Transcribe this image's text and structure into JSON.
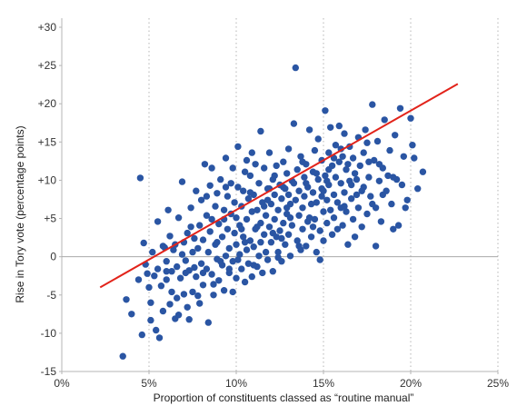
{
  "chart_data": {
    "type": "scatter",
    "xlabel": "Proportion of constituents classed as “routine manual”",
    "ylabel": "Rise in Tory vote (percentage points)",
    "xlim": [
      0,
      25
    ],
    "ylim": [
      -15,
      30
    ],
    "x_ticks": [
      0,
      5,
      10,
      15,
      20,
      25
    ],
    "x_tick_labels": [
      "0%",
      "5%",
      "10%",
      "15%",
      "20%",
      "25%"
    ],
    "y_ticks": [
      -15,
      -10,
      -5,
      0,
      5,
      10,
      15,
      20,
      25,
      30
    ],
    "y_tick_labels": [
      "-15",
      "-10",
      "-5",
      "0",
      "+5",
      "+10",
      "+15",
      "+20",
      "+25",
      "+30"
    ],
    "grid": "vertical dotted at x ticks; solid horizontal line at y = 0",
    "legend": "none",
    "colors": {
      "points": "#2a55a3",
      "trend": "#e2231a",
      "zero_line": "#aaaaaa",
      "grid": "#b5b5b5"
    },
    "trendline": {
      "x": [
        2.2,
        22.7
      ],
      "y": [
        -4,
        22.6
      ]
    },
    "points": [
      [
        3.5,
        -13.0
      ],
      [
        3.7,
        -5.6
      ],
      [
        4.0,
        -7.5
      ],
      [
        4.4,
        -3.0
      ],
      [
        4.5,
        10.3
      ],
      [
        4.6,
        -10.2
      ],
      [
        4.7,
        1.8
      ],
      [
        4.8,
        -1.0
      ],
      [
        4.9,
        -2.2
      ],
      [
        5.0,
        -4.0
      ],
      [
        5.1,
        -8.3
      ],
      [
        5.1,
        -6.0
      ],
      [
        5.2,
        0.6
      ],
      [
        5.3,
        -2.5
      ],
      [
        5.4,
        -9.6
      ],
      [
        5.5,
        -1.6
      ],
      [
        5.5,
        4.6
      ],
      [
        5.6,
        -10.6
      ],
      [
        5.7,
        -3.8
      ],
      [
        5.8,
        1.4
      ],
      [
        5.9,
        1.2
      ],
      [
        6.0,
        -3.0
      ],
      [
        6.0,
        -0.6
      ],
      [
        6.1,
        6.1
      ],
      [
        6.2,
        -6.2
      ],
      [
        6.2,
        2.7
      ],
      [
        6.3,
        -4.6
      ],
      [
        6.4,
        0.9
      ],
      [
        6.5,
        -8.1
      ],
      [
        6.5,
        1.6
      ],
      [
        6.6,
        -1.3
      ],
      [
        6.7,
        -7.6
      ],
      [
        6.7,
        5.1
      ],
      [
        6.8,
        -2.8
      ],
      [
        6.9,
        9.8
      ],
      [
        6.9,
        0.3
      ],
      [
        7.0,
        -4.9
      ],
      [
        7.0,
        1.9
      ],
      [
        7.1,
        -0.5
      ],
      [
        7.2,
        -6.6
      ],
      [
        7.2,
        3.1
      ],
      [
        7.3,
        -8.2
      ],
      [
        7.3,
        -1.8
      ],
      [
        7.4,
        6.4
      ],
      [
        7.5,
        -4.6
      ],
      [
        7.5,
        0.6
      ],
      [
        7.6,
        2.4
      ],
      [
        7.7,
        -2.6
      ],
      [
        7.7,
        8.6
      ],
      [
        7.8,
        -5.1
      ],
      [
        7.8,
        1.1
      ],
      [
        7.9,
        4.1
      ],
      [
        8.0,
        -0.9
      ],
      [
        8.0,
        7.4
      ],
      [
        8.1,
        -3.7
      ],
      [
        8.1,
        2.2
      ],
      [
        8.2,
        12.1
      ],
      [
        8.3,
        -1.6
      ],
      [
        8.3,
        5.4
      ],
      [
        8.4,
        -8.6
      ],
      [
        8.4,
        0.6
      ],
      [
        8.5,
        9.3
      ],
      [
        8.5,
        3.3
      ],
      [
        8.6,
        -2.3
      ],
      [
        8.6,
        11.6
      ],
      [
        8.7,
        -5.0
      ],
      [
        8.8,
        1.6
      ],
      [
        8.8,
        6.6
      ],
      [
        8.9,
        -0.3
      ],
      [
        8.9,
        8.3
      ],
      [
        9.0,
        -3.1
      ],
      [
        9.0,
        4.3
      ],
      [
        9.1,
        10.1
      ],
      [
        9.2,
        -1.1
      ],
      [
        9.2,
        2.6
      ],
      [
        9.3,
        6.1
      ],
      [
        9.3,
        -4.4
      ],
      [
        9.4,
        0.1
      ],
      [
        9.4,
        12.9
      ],
      [
        9.5,
        3.6
      ],
      [
        9.5,
        7.9
      ],
      [
        9.6,
        -2.1
      ],
      [
        9.6,
        1.1
      ],
      [
        9.7,
        5.6
      ],
      [
        9.7,
        9.6
      ],
      [
        9.8,
        -4.6
      ],
      [
        9.8,
        -0.6
      ],
      [
        9.9,
        3.1
      ],
      [
        9.9,
        7.1
      ],
      [
        10.0,
        -2.8
      ],
      [
        10.0,
        1.6
      ],
      [
        10.0,
        5.1
      ],
      [
        10.1,
        9.1
      ],
      [
        10.1,
        14.4
      ],
      [
        10.2,
        0.3
      ],
      [
        10.2,
        4.1
      ],
      [
        10.3,
        -1.6
      ],
      [
        10.3,
        6.6
      ],
      [
        10.4,
        2.6
      ],
      [
        10.4,
        8.6
      ],
      [
        10.5,
        -3.3
      ],
      [
        10.5,
        11.1
      ],
      [
        10.6,
        0.9
      ],
      [
        10.6,
        4.9
      ],
      [
        10.7,
        7.6
      ],
      [
        10.7,
        -0.9
      ],
      [
        10.8,
        2.1
      ],
      [
        10.8,
        10.6
      ],
      [
        10.9,
        5.9
      ],
      [
        10.9,
        -2.6
      ],
      [
        11.0,
        1.3
      ],
      [
        11.0,
        8.1
      ],
      [
        11.1,
        3.6
      ],
      [
        11.1,
        12.1
      ],
      [
        11.2,
        -1.3
      ],
      [
        11.2,
        6.1
      ],
      [
        11.3,
        0.1
      ],
      [
        11.3,
        9.6
      ],
      [
        11.4,
        4.4
      ],
      [
        11.4,
        16.4
      ],
      [
        11.5,
        -2.1
      ],
      [
        11.5,
        7.1
      ],
      [
        11.6,
        2.9
      ],
      [
        11.6,
        11.6
      ],
      [
        11.7,
        0.6
      ],
      [
        11.7,
        5.4
      ],
      [
        11.8,
        8.9
      ],
      [
        11.8,
        -0.4
      ],
      [
        11.9,
        3.9
      ],
      [
        11.9,
        13.6
      ],
      [
        12.0,
        1.9
      ],
      [
        12.0,
        6.9
      ],
      [
        12.1,
        10.1
      ],
      [
        12.1,
        -1.9
      ],
      [
        12.2,
        4.9
      ],
      [
        12.2,
        8.1
      ],
      [
        12.3,
        2.6
      ],
      [
        12.3,
        11.9
      ],
      [
        12.4,
        0.6
      ],
      [
        12.4,
        6.1
      ],
      [
        12.5,
        9.4
      ],
      [
        12.5,
        3.4
      ],
      [
        12.6,
        -0.6
      ],
      [
        12.6,
        7.6
      ],
      [
        12.7,
        12.4
      ],
      [
        12.7,
        4.4
      ],
      [
        12.8,
        1.6
      ],
      [
        12.8,
        8.9
      ],
      [
        12.9,
        5.6
      ],
      [
        12.9,
        10.9
      ],
      [
        13.0,
        2.9
      ],
      [
        13.0,
        14.1
      ],
      [
        13.1,
        6.9
      ],
      [
        13.1,
        0.1
      ],
      [
        13.2,
        9.9
      ],
      [
        13.2,
        4.1
      ],
      [
        13.3,
        17.4
      ],
      [
        13.4,
        7.4
      ],
      [
        13.4,
        24.7
      ],
      [
        13.5,
        2.1
      ],
      [
        13.5,
        11.4
      ],
      [
        13.6,
        5.4
      ],
      [
        13.6,
        8.6
      ],
      [
        13.7,
        0.9
      ],
      [
        13.7,
        13.1
      ],
      [
        13.8,
        6.4
      ],
      [
        13.8,
        3.6
      ],
      [
        13.9,
        10.4
      ],
      [
        13.9,
        7.9
      ],
      [
        14.0,
        1.4
      ],
      [
        14.0,
        12.1
      ],
      [
        14.1,
        4.6
      ],
      [
        14.1,
        9.1
      ],
      [
        14.2,
        16.6
      ],
      [
        14.3,
        6.9
      ],
      [
        14.3,
        2.6
      ],
      [
        14.4,
        11.1
      ],
      [
        14.4,
        8.4
      ],
      [
        14.5,
        4.9
      ],
      [
        14.5,
        13.9
      ],
      [
        14.6,
        0.6
      ],
      [
        14.6,
        7.1
      ],
      [
        14.7,
        10.1
      ],
      [
        14.7,
        15.4
      ],
      [
        14.8,
        3.4
      ],
      [
        14.8,
        -0.4
      ],
      [
        14.9,
        8.9
      ],
      [
        14.9,
        12.6
      ],
      [
        15.0,
        5.9
      ],
      [
        15.0,
        2.1
      ],
      [
        15.1,
        10.6
      ],
      [
        15.1,
        19.1
      ],
      [
        15.2,
        7.4
      ],
      [
        15.2,
        4.4
      ],
      [
        15.3,
        13.6
      ],
      [
        15.3,
        9.4
      ],
      [
        15.4,
        6.1
      ],
      [
        15.4,
        16.9
      ],
      [
        15.5,
        2.9
      ],
      [
        15.5,
        11.9
      ],
      [
        15.6,
        8.1
      ],
      [
        15.6,
        5.1
      ],
      [
        15.7,
        14.6
      ],
      [
        15.7,
        10.4
      ],
      [
        15.8,
        3.6
      ],
      [
        15.8,
        7.1
      ],
      [
        15.9,
        12.4
      ],
      [
        15.9,
        17.1
      ],
      [
        16.0,
        6.4
      ],
      [
        16.0,
        9.6
      ],
      [
        16.1,
        4.1
      ],
      [
        16.1,
        13.1
      ],
      [
        16.2,
        16.1
      ],
      [
        16.2,
        8.4
      ],
      [
        16.3,
        11.4
      ],
      [
        16.3,
        5.9
      ],
      [
        16.4,
        1.6
      ],
      [
        16.5,
        9.9
      ],
      [
        16.5,
        14.4
      ],
      [
        16.6,
        7.6
      ],
      [
        16.7,
        12.9
      ],
      [
        16.7,
        4.9
      ],
      [
        16.8,
        10.9
      ],
      [
        16.8,
        2.6
      ],
      [
        16.9,
        8.1
      ],
      [
        17.0,
        15.6
      ],
      [
        17.0,
        6.4
      ],
      [
        17.1,
        11.9
      ],
      [
        17.2,
        3.9
      ],
      [
        17.3,
        9.1
      ],
      [
        17.3,
        13.6
      ],
      [
        17.4,
        16.6
      ],
      [
        17.5,
        5.6
      ],
      [
        17.6,
        10.4
      ],
      [
        17.7,
        7.9
      ],
      [
        17.8,
        19.9
      ],
      [
        17.9,
        12.6
      ],
      [
        18.0,
        1.4
      ],
      [
        18.0,
        6.4
      ],
      [
        18.1,
        15.1
      ],
      [
        18.2,
        9.9
      ],
      [
        18.3,
        4.6
      ],
      [
        18.4,
        11.6
      ],
      [
        18.5,
        17.9
      ],
      [
        18.6,
        8.6
      ],
      [
        18.8,
        13.9
      ],
      [
        18.9,
        6.9
      ],
      [
        19.0,
        3.6
      ],
      [
        19.1,
        15.9
      ],
      [
        19.2,
        10.1
      ],
      [
        19.3,
        4.1
      ],
      [
        19.4,
        19.4
      ],
      [
        19.5,
        9.4
      ],
      [
        19.6,
        13.1
      ],
      [
        19.8,
        7.4
      ],
      [
        20.0,
        18.1
      ],
      [
        20.2,
        12.9
      ],
      [
        20.4,
        8.9
      ],
      [
        20.7,
        11.1
      ],
      [
        20.1,
        14.6
      ],
      [
        19.7,
        6.4
      ],
      [
        18.7,
        10.6
      ],
      [
        17.5,
        14.9
      ],
      [
        16.4,
        12.1
      ],
      [
        15.2,
        9.9
      ],
      [
        14.2,
        5.1
      ],
      [
        13.3,
        9.6
      ],
      [
        12.1,
        3.1
      ],
      [
        11.2,
        3.9
      ],
      [
        10.5,
        1.9
      ],
      [
        9.6,
        -1.6
      ],
      [
        8.7,
        -3.6
      ],
      [
        7.6,
        -1.4
      ],
      [
        6.6,
        -5.4
      ],
      [
        5.8,
        -7.1
      ],
      [
        9.1,
        -0.6
      ],
      [
        10.3,
        3.6
      ],
      [
        11.6,
        6.6
      ],
      [
        12.6,
        2.4
      ],
      [
        13.8,
        12.4
      ],
      [
        14.9,
        7.9
      ],
      [
        16.0,
        14.1
      ],
      [
        17.2,
        8.6
      ],
      [
        18.2,
        12.1
      ],
      [
        19.0,
        10.4
      ],
      [
        8.3,
        7.9
      ],
      [
        9.4,
        9.1
      ],
      [
        10.6,
        12.6
      ],
      [
        11.8,
        7.4
      ],
      [
        13.0,
        8.1
      ],
      [
        14.0,
        9.6
      ],
      [
        15.3,
        11.4
      ],
      [
        16.6,
        9.4
      ],
      [
        17.8,
        6.9
      ],
      [
        12.4,
        -0.1
      ],
      [
        11.0,
        -1.1
      ],
      [
        9.8,
        11.6
      ],
      [
        8.6,
        4.9
      ],
      [
        7.4,
        3.9
      ],
      [
        6.3,
        -1.9
      ],
      [
        7.9,
        -6.1
      ],
      [
        8.9,
        1.9
      ],
      [
        10.9,
        13.6
      ],
      [
        12.9,
        6.4
      ],
      [
        14.6,
        10.9
      ],
      [
        15.6,
        12.9
      ],
      [
        16.9,
        10.1
      ],
      [
        18.4,
        8.1
      ],
      [
        13.6,
        1.4
      ],
      [
        11.4,
        1.9
      ],
      [
        10.1,
        -0.4
      ],
      [
        12.2,
        10.6
      ],
      [
        14.4,
        3.9
      ],
      [
        16.2,
        6.6
      ],
      [
        17.6,
        12.4
      ],
      [
        9.3,
        4.9
      ],
      [
        8.1,
        -2.1
      ],
      [
        7.1,
        -2.1
      ],
      [
        6.0,
        -1.9
      ],
      [
        11.9,
        8.9
      ],
      [
        13.1,
        5.1
      ],
      [
        15.0,
        8.6
      ],
      [
        12.7,
        9.1
      ],
      [
        10.8,
        8.4
      ]
    ]
  }
}
